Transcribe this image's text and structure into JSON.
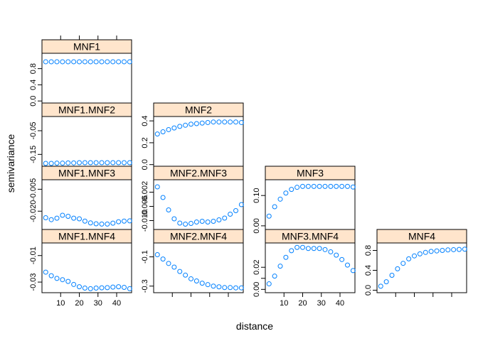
{
  "figure": {
    "xlabel": "distance",
    "ylabel": "semivariance",
    "strip_color": "#FFE5CC",
    "point_color": "#0080FF"
  },
  "chart_data": [
    {
      "type": "scatter",
      "title": "MNF1",
      "x": [
        2,
        5,
        8,
        11,
        14,
        17,
        20,
        23,
        26,
        29,
        32,
        35,
        38,
        41,
        44,
        47
      ],
      "y": [
        0.97,
        0.97,
        0.97,
        0.97,
        0.97,
        0.97,
        0.97,
        0.97,
        0.97,
        0.97,
        0.97,
        0.97,
        0.97,
        0.97,
        0.97,
        0.97
      ],
      "xlim": [
        0,
        48
      ],
      "ylim": [
        -0.05,
        1.18
      ],
      "yticks": [
        0.0,
        0.4,
        0.8
      ],
      "ytick_labels": [
        "0.0",
        "0.4",
        "0.8"
      ],
      "xticks": [
        10,
        20,
        30,
        40
      ],
      "xtick_labels": [
        "10",
        "20",
        "30",
        "40"
      ]
    },
    {
      "type": "scatter",
      "title": "MNF1.MNF2",
      "x": [
        2,
        5,
        8,
        11,
        14,
        17,
        20,
        23,
        26,
        29,
        32,
        35,
        38,
        41,
        44,
        47
      ],
      "y": [
        -0.188,
        -0.188,
        -0.187,
        -0.187,
        -0.186,
        -0.186,
        -0.185,
        -0.185,
        -0.185,
        -0.185,
        -0.185,
        -0.185,
        -0.185,
        -0.185,
        -0.185,
        -0.185
      ],
      "xlim": [
        0,
        48
      ],
      "ylim": [
        -0.2,
        0.01
      ],
      "yticks": [
        -0.15,
        -0.05
      ],
      "ytick_labels": [
        "-0.15",
        "-0.05"
      ],
      "xticks": [
        10,
        20,
        30,
        40
      ],
      "xtick_labels": [
        "10",
        "20",
        "30",
        "40"
      ]
    },
    {
      "type": "scatter",
      "title": "MNF1.MNF3",
      "x": [
        2,
        5,
        8,
        11,
        14,
        17,
        20,
        23,
        26,
        29,
        32,
        35,
        38,
        41,
        44,
        47
      ],
      "y": [
        -0.0245,
        -0.0258,
        -0.0248,
        -0.0228,
        -0.0235,
        -0.0248,
        -0.0252,
        -0.0268,
        -0.028,
        -0.0286,
        -0.0288,
        -0.0288,
        -0.0282,
        -0.0272,
        -0.0268,
        -0.0266
      ],
      "xlim": [
        0,
        48
      ],
      "ylim": [
        -0.0325,
        0.0015
      ],
      "yticks": [
        -0.02,
        -0.005
      ],
      "ytick_labels": [
        "-0.020",
        "-0.005"
      ],
      "xticks": [
        10,
        20,
        30,
        40
      ],
      "xtick_labels": [
        "10",
        "20",
        "30",
        "40"
      ]
    },
    {
      "type": "scatter",
      "title": "MNF1.MNF4",
      "x": [
        2,
        5,
        8,
        11,
        14,
        17,
        20,
        23,
        26,
        29,
        32,
        35,
        38,
        41,
        44,
        47
      ],
      "y": [
        -0.0225,
        -0.0252,
        -0.0272,
        -0.0282,
        -0.0295,
        -0.0318,
        -0.0335,
        -0.0345,
        -0.035,
        -0.0345,
        -0.0343,
        -0.0342,
        -0.0338,
        -0.0335,
        -0.034,
        -0.035
      ],
      "xlim": [
        0,
        48
      ],
      "ylim": [
        -0.038,
        -0.0005
      ],
      "yticks": [
        -0.03,
        -0.01
      ],
      "ytick_labels": [
        "-0.03",
        "-0.01"
      ],
      "xticks": [
        10,
        20,
        30,
        40
      ],
      "xtick_labels": [
        "10",
        "20",
        "30",
        "40"
      ]
    },
    {
      "type": "scatter",
      "title": "MNF2",
      "x": [
        2,
        5,
        8,
        11,
        14,
        17,
        20,
        23,
        26,
        29,
        32,
        35,
        38,
        41,
        44,
        47
      ],
      "y": [
        0.28,
        0.3,
        0.32,
        0.335,
        0.35,
        0.36,
        0.37,
        0.375,
        0.38,
        0.385,
        0.39,
        0.39,
        0.39,
        0.39,
        0.39,
        0.385
      ],
      "xlim": [
        0,
        48
      ],
      "ylim": [
        -0.015,
        0.44
      ],
      "yticks": [
        0.0,
        0.2,
        0.4
      ],
      "ytick_labels": [
        "0.0",
        "0.2",
        "0.4"
      ],
      "xticks": [
        10,
        20,
        30,
        40
      ],
      "xtick_labels": [
        "",
        "",
        "",
        ""
      ]
    },
    {
      "type": "scatter",
      "title": "MNF2.MNF3",
      "x": [
        2,
        5,
        8,
        11,
        14,
        17,
        20,
        23,
        26,
        29,
        32,
        35,
        38,
        41,
        44,
        47
      ],
      "y": [
        -0.0005,
        -0.0035,
        -0.007,
        -0.0095,
        -0.0107,
        -0.011,
        -0.0108,
        -0.0104,
        -0.0102,
        -0.0104,
        -0.0102,
        -0.0098,
        -0.0093,
        -0.0082,
        -0.0072,
        -0.0055
      ],
      "xlim": [
        0,
        48
      ],
      "ylim": [
        -0.0125,
        0.0015
      ],
      "yticks": [
        -0.01,
        -0.006,
        -0.002
      ],
      "ytick_labels": [
        "-0.010",
        "-0.006",
        "-0.002"
      ],
      "xticks": [
        10,
        20,
        30,
        40
      ],
      "xtick_labels": [
        "",
        "",
        "",
        ""
      ]
    },
    {
      "type": "scatter",
      "title": "MNF2.MNF4",
      "x": [
        2,
        5,
        8,
        11,
        14,
        17,
        20,
        23,
        26,
        29,
        32,
        35,
        38,
        41,
        44,
        47
      ],
      "y": [
        -0.085,
        -0.115,
        -0.145,
        -0.17,
        -0.2,
        -0.225,
        -0.25,
        -0.265,
        -0.28,
        -0.29,
        -0.3,
        -0.305,
        -0.31,
        -0.31,
        -0.312,
        -0.312
      ],
      "xlim": [
        0,
        48
      ],
      "ylim": [
        -0.345,
        -0.005
      ],
      "yticks": [
        -0.3,
        -0.1
      ],
      "ytick_labels": [
        "-0.3",
        "-0.1"
      ],
      "xticks": [
        10,
        20,
        30,
        40
      ],
      "xtick_labels": [
        "",
        "",
        "",
        ""
      ]
    },
    {
      "type": "scatter",
      "title": "MNF3",
      "x": [
        2,
        5,
        8,
        11,
        14,
        17,
        20,
        23,
        26,
        29,
        32,
        35,
        38,
        41,
        44,
        47
      ],
      "y": [
        0.032,
        0.063,
        0.088,
        0.108,
        0.12,
        0.127,
        0.13,
        0.13,
        0.13,
        0.13,
        0.13,
        0.13,
        0.13,
        0.13,
        0.13,
        0.128
      ],
      "xlim": [
        0,
        48
      ],
      "ylim": [
        -0.012,
        0.152
      ],
      "yticks": [
        0.0,
        0.1
      ],
      "ytick_labels": [
        "0.00",
        "0.10"
      ],
      "xticks": [
        10,
        20,
        30,
        40
      ],
      "xtick_labels": [
        "",
        "",
        "",
        ""
      ]
    },
    {
      "type": "scatter",
      "title": "MNF3.MNF4",
      "x": [
        2,
        5,
        8,
        11,
        14,
        17,
        20,
        23,
        26,
        29,
        32,
        35,
        38,
        41,
        44,
        47
      ],
      "y": [
        0.005,
        0.012,
        0.021,
        0.029,
        0.035,
        0.038,
        0.038,
        0.037,
        0.037,
        0.037,
        0.036,
        0.034,
        0.031,
        0.027,
        0.022,
        0.017
      ],
      "xlim": [
        0,
        48
      ],
      "ylim": [
        -0.003,
        0.042
      ],
      "yticks": [
        0.0,
        0.01,
        0.02
      ],
      "ytick_labels": [
        "0.00",
        "",
        "0.02"
      ],
      "xticks": [
        10,
        20,
        30,
        40
      ],
      "xtick_labels": [
        "10",
        "20",
        "30",
        "40"
      ]
    },
    {
      "type": "scatter",
      "title": "MNF4",
      "x": [
        2,
        5,
        8,
        11,
        14,
        17,
        20,
        23,
        26,
        29,
        32,
        35,
        38,
        41,
        44,
        47
      ],
      "y": [
        0.08,
        0.17,
        0.3,
        0.43,
        0.54,
        0.63,
        0.69,
        0.73,
        0.76,
        0.78,
        0.79,
        0.8,
        0.81,
        0.815,
        0.82,
        0.825
      ],
      "xlim": [
        0,
        48
      ],
      "ylim": [
        -0.05,
        0.95
      ],
      "yticks": [
        0.0,
        0.4,
        0.8
      ],
      "ytick_labels": [
        "0.0",
        "0.4",
        "0.8"
      ],
      "xticks": [
        10,
        20,
        30,
        40
      ],
      "xtick_labels": [
        "",
        "",
        "",
        ""
      ]
    }
  ]
}
